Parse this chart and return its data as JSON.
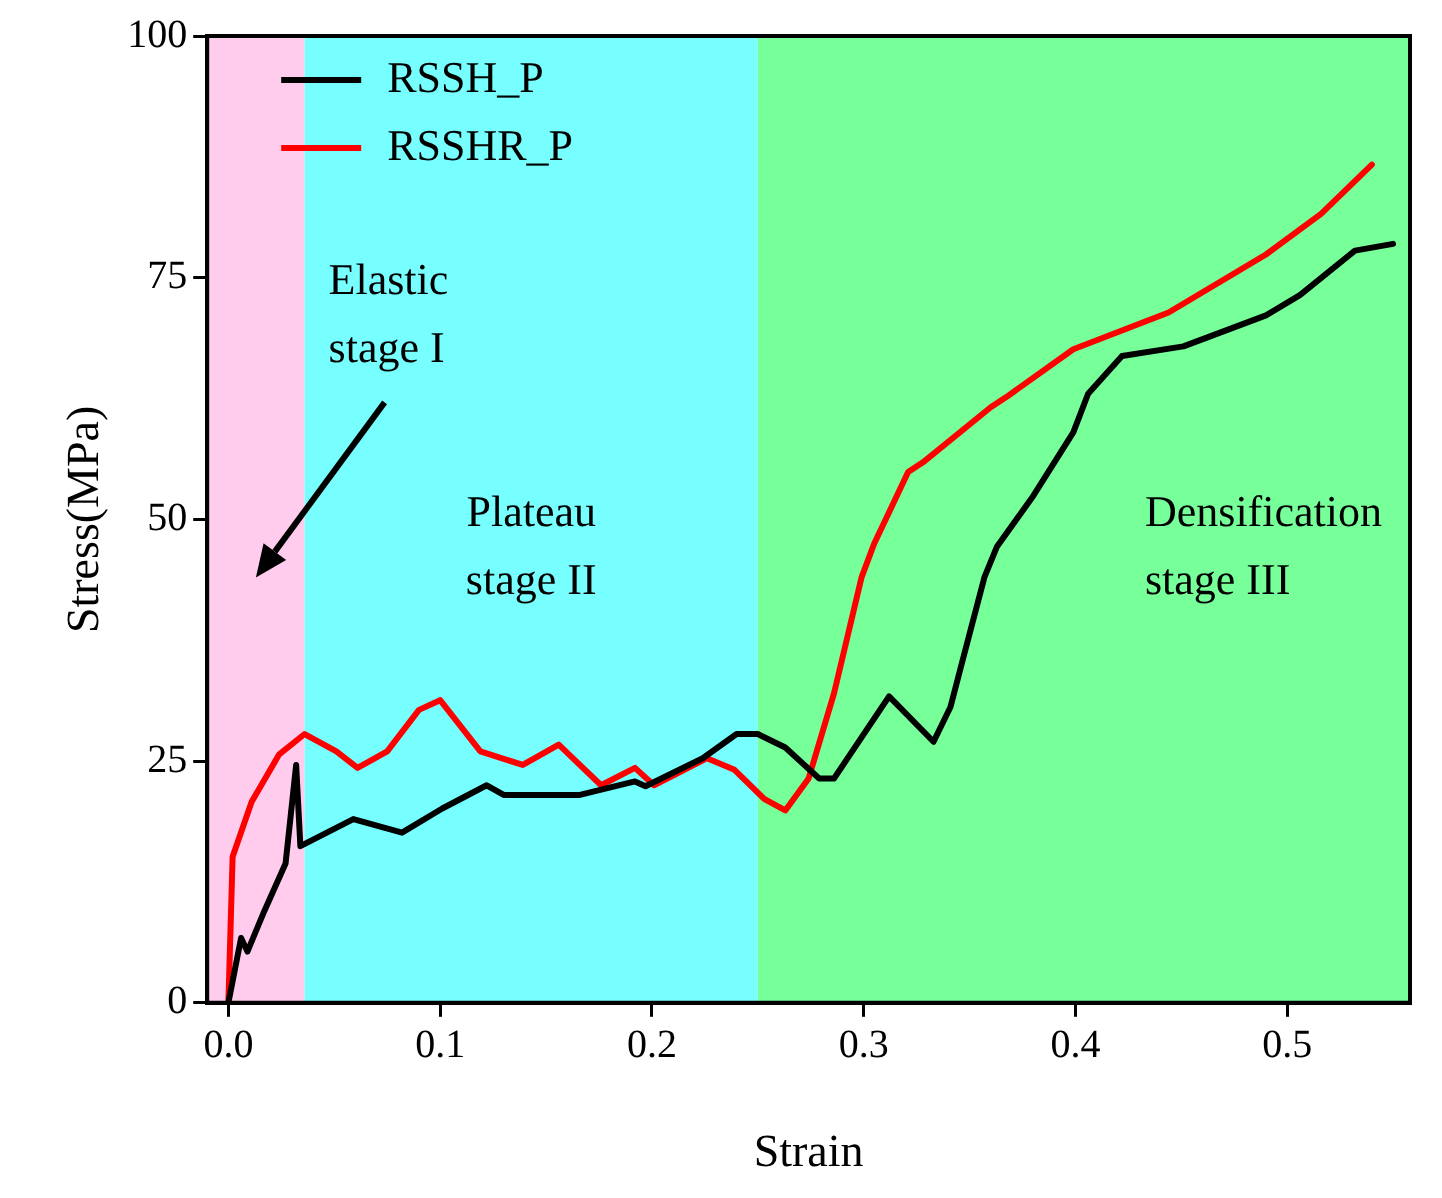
{
  "chart_data": {
    "type": "line",
    "xlabel": "Strain",
    "ylabel": "Stress(MPa)",
    "xlim": [
      -0.01,
      0.558
    ],
    "ylim": [
      0,
      100
    ],
    "xticks": [
      {
        "value": 0,
        "label": "0.0"
      },
      {
        "value": 0.1,
        "label": "0.1"
      },
      {
        "value": 0.2,
        "label": "0.2"
      },
      {
        "value": 0.3,
        "label": "0.3"
      },
      {
        "value": 0.4,
        "label": "0.4"
      },
      {
        "value": 0.5,
        "label": "0.5"
      }
    ],
    "yticks": [
      0,
      25,
      50,
      75,
      100
    ],
    "grid": false,
    "legend": "top left",
    "marker": "none",
    "line_style": "solid",
    "bands": [
      {
        "axis": "x",
        "from": -0.01,
        "to": 0.036,
        "color": "#ffccee",
        "label": "Elastic\nstage I"
      },
      {
        "axis": "x",
        "from": 0.036,
        "to": 0.25,
        "color": "#77ffff",
        "label": "Plateau\nstage II"
      },
      {
        "axis": "x",
        "from": 0.25,
        "to": 0.558,
        "color": "#77ff99",
        "label": "Densification\nstage III"
      }
    ],
    "series": [
      {
        "name": "RSSH_P",
        "color": "#000000",
        "x": [
          0,
          0.006,
          0.009,
          0.017,
          0.027,
          0.032,
          0.034,
          0.059,
          0.082,
          0.101,
          0.122,
          0.13,
          0.166,
          0.192,
          0.197,
          0.224,
          0.24,
          0.25,
          0.263,
          0.279,
          0.286,
          0.312,
          0.333,
          0.341,
          0.346,
          0.357,
          0.363,
          0.38,
          0.399,
          0.406,
          0.422,
          0.451,
          0.49,
          0.506,
          0.532,
          0.55
        ],
        "values": [
          0,
          6.7,
          5.3,
          9.5,
          14.4,
          24.6,
          16.2,
          19,
          17.6,
          20.1,
          22.5,
          21.5,
          21.5,
          22.9,
          22.4,
          25.3,
          27.8,
          27.8,
          26.4,
          23.2,
          23.2,
          31.7,
          27,
          30.6,
          34.8,
          44,
          47.2,
          52.4,
          59,
          63,
          66.9,
          67.9,
          71.1,
          73.2,
          77.8,
          78.5
        ]
      },
      {
        "name": "RSSHR_P",
        "color": "#ff0000",
        "x": [
          0,
          0.002,
          0.011,
          0.024,
          0.036,
          0.051,
          0.061,
          0.075,
          0.09,
          0.1,
          0.119,
          0.139,
          0.156,
          0.176,
          0.192,
          0.201,
          0.226,
          0.239,
          0.253,
          0.263,
          0.274,
          0.286,
          0.299,
          0.305,
          0.321,
          0.328,
          0.36,
          0.367,
          0.399,
          0.444,
          0.49,
          0.516,
          0.54
        ],
        "values": [
          0,
          15.1,
          20.8,
          25.7,
          27.8,
          26,
          24.3,
          26,
          30.3,
          31.3,
          26,
          24.6,
          26.7,
          22.5,
          24.3,
          22.5,
          25.3,
          24.1,
          21.1,
          19.9,
          23.2,
          32,
          44,
          47.5,
          54.9,
          55.9,
          61.6,
          62.6,
          67.6,
          71.4,
          77.4,
          81.6,
          86.7
        ]
      }
    ]
  }
}
